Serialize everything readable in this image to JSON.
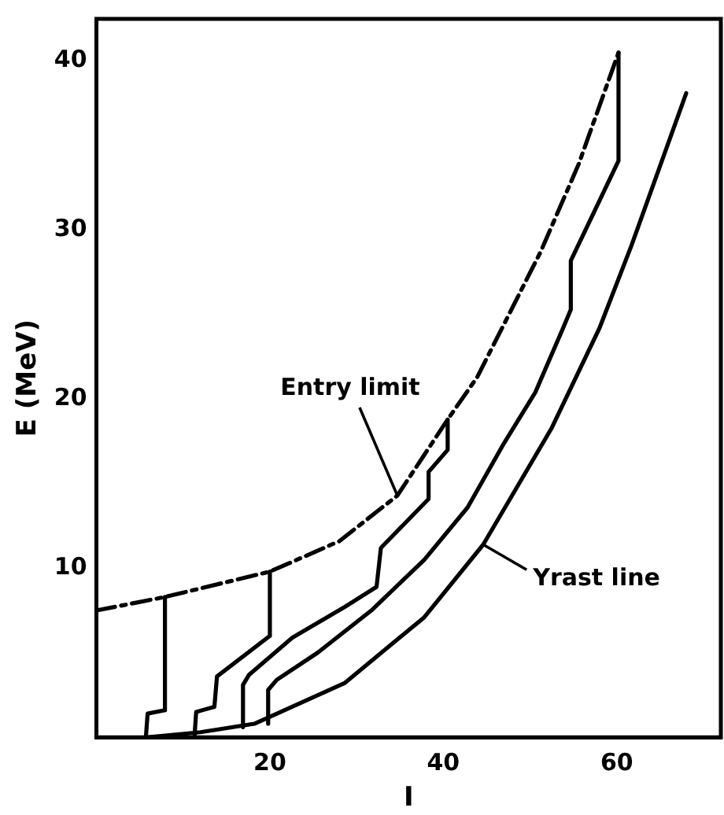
{
  "chart_data": {
    "type": "line",
    "xlabel": "I",
    "ylabel": "E (MeV)",
    "xlim": [
      0,
      72
    ],
    "ylim": [
      0,
      42.5
    ],
    "xticks": [
      20,
      40,
      60
    ],
    "yticks": [
      10,
      20,
      30,
      40
    ],
    "grid": false,
    "legend": false,
    "marker": "none",
    "series": [
      {
        "color": "#000000",
        "line_style": "dashed",
        "x": [
          0,
          7.9,
          20,
          28,
          34.7,
          40.5,
          43.9,
          51.2,
          55.6,
          60.2
        ],
        "values": [
          7.5,
          8.3,
          9.8,
          11.6,
          14.3,
          18.8,
          21.3,
          28.7,
          33.9,
          40.5
        ]
      },
      {
        "color": "#000000",
        "line_style": "solid",
        "x": [
          7.9,
          7.9,
          5.9,
          5.7
        ],
        "values": [
          8.3,
          1.6,
          1.4,
          0
        ]
      },
      {
        "color": "#000000",
        "line_style": "solid",
        "x": [
          20,
          20,
          13.9,
          13.6,
          11.5,
          11.3
        ],
        "values": [
          9.8,
          6,
          3.6,
          1.8,
          1.5,
          0
        ]
      },
      {
        "color": "#000000",
        "line_style": "solid",
        "x": [
          16.9,
          16.9,
          17.6,
          22.6,
          28.6,
          32.3,
          32.8,
          38.3,
          38.3,
          40.5,
          40.5
        ],
        "values": [
          0.6,
          3.1,
          3.7,
          5.9,
          7.7,
          8.9,
          11.2,
          14.1,
          15.7,
          17,
          18.8
        ]
      },
      {
        "color": "#000000",
        "line_style": "solid",
        "x": [
          19.8,
          19.8,
          20.8,
          25.5,
          31.7,
          37.8,
          42.8,
          47,
          50.6,
          53.8,
          54.7,
          54.7,
          60.2,
          60.2
        ],
        "values": [
          0.8,
          2.8,
          3.4,
          5,
          7.5,
          10.5,
          13.6,
          17.4,
          20.4,
          24.2,
          25.3,
          28.2,
          34.1,
          40.5
        ]
      },
      {
        "color": "#000000",
        "line_style": "solid",
        "x": [
          6,
          12,
          18.2,
          28.6,
          37.8,
          44.6,
          52.5,
          58,
          61.7,
          68
        ],
        "values": [
          0,
          0.3,
          0.8,
          3.2,
          7.1,
          11.4,
          18.3,
          24.2,
          29.1,
          38.1
        ]
      }
    ],
    "annotations": [
      {
        "text": "Entry limit",
        "x": 34.7,
        "y": 14.3
      },
      {
        "text": "Yrast line",
        "x": 44.6,
        "y": 11.4
      }
    ]
  }
}
